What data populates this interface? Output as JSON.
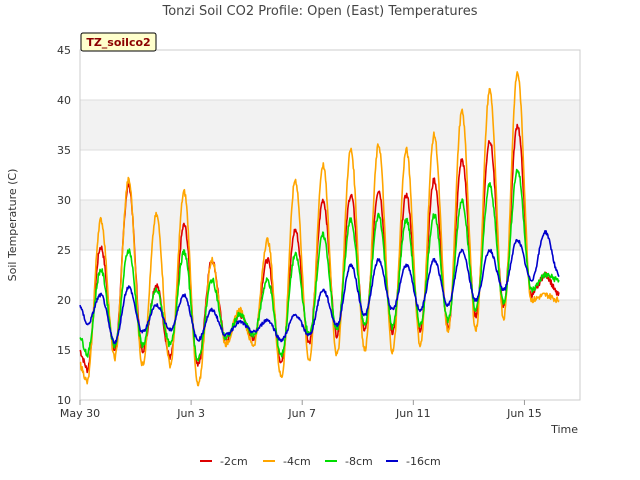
{
  "chart_data": {
    "type": "line",
    "title": "Tonzi Soil CO2 Profile: Open (East) Temperatures",
    "xlabel": "Time",
    "ylabel": "Soil Temperature (C)",
    "ylim": [
      10,
      45
    ],
    "xlim": [
      0,
      18
    ],
    "yticks": [
      10,
      15,
      20,
      25,
      30,
      35,
      40,
      45
    ],
    "xticks": [
      {
        "x": 0,
        "label": "May 30"
      },
      {
        "x": 4,
        "label": "Jun 3"
      },
      {
        "x": 8,
        "label": "Jun 7"
      },
      {
        "x": 12,
        "label": "Jun 11"
      },
      {
        "x": 16,
        "label": "Jun 15"
      }
    ],
    "grid": true,
    "legend_position": "bottom",
    "site_tag": "TZ_soilco2",
    "daily_extremes": {
      "min_day_offset": [
        0.25,
        1.25,
        2.25,
        3.25,
        4.25,
        5.25,
        6.25,
        7.25,
        8.25,
        9.25,
        10.25,
        11.25,
        12.25,
        13.25,
        14.25,
        15.25,
        16.25,
        17.25
      ],
      "max_day_offset": [
        0.75,
        1.75,
        2.75,
        3.75,
        4.75,
        5.75,
        6.75,
        7.75,
        8.75,
        9.75,
        10.75,
        11.75,
        12.75,
        13.75,
        14.75,
        15.75,
        16.75
      ]
    },
    "series": [
      {
        "name": "-2cm",
        "color": "#dd0000",
        "mins": [
          13.0,
          15.0,
          15.0,
          14.3,
          13.5,
          16.0,
          16.2,
          13.8,
          15.8,
          16.5,
          17.0,
          16.8,
          17.0,
          17.2,
          18.5,
          19.5,
          20.5,
          20.5
        ],
        "maxs": [
          25.3,
          31.5,
          21.5,
          27.5,
          24.0,
          18.5,
          24.0,
          27.0,
          30.0,
          30.5,
          31.0,
          30.5,
          32.0,
          34.0,
          36.0,
          37.5,
          22.5
        ]
      },
      {
        "name": "-4cm",
        "color": "#ffa500",
        "mins": [
          11.7,
          14.2,
          13.5,
          13.5,
          11.4,
          15.6,
          15.5,
          12.3,
          14.0,
          14.5,
          15.0,
          14.8,
          15.5,
          16.8,
          17.0,
          18.2,
          20.0,
          20.0
        ],
        "maxs": [
          28.0,
          32.0,
          28.5,
          30.8,
          24.0,
          19.0,
          26.0,
          32.0,
          33.5,
          35.0,
          35.5,
          35.0,
          36.5,
          38.8,
          41.0,
          42.7,
          20.5
        ]
      },
      {
        "name": "-8cm",
        "color": "#00dd00",
        "mins": [
          14.5,
          15.5,
          15.5,
          15.5,
          14.0,
          16.2,
          16.5,
          14.5,
          16.5,
          17.0,
          17.5,
          17.3,
          17.5,
          18.0,
          19.0,
          19.8,
          21.0,
          22.0
        ],
        "maxs": [
          23.0,
          25.0,
          21.0,
          24.8,
          22.0,
          18.5,
          22.0,
          24.5,
          26.5,
          28.0,
          28.5,
          28.0,
          28.5,
          30.0,
          31.5,
          33.0,
          22.5
        ]
      },
      {
        "name": "-16cm",
        "color": "#0000cc",
        "mins": [
          17.5,
          15.8,
          16.8,
          17.0,
          16.0,
          16.5,
          16.8,
          16.0,
          16.5,
          17.5,
          18.5,
          19.0,
          19.0,
          19.5,
          20.0,
          21.0,
          22.0,
          22.5
        ],
        "maxs": [
          20.5,
          21.3,
          19.5,
          20.5,
          19.0,
          17.8,
          18.0,
          18.5,
          21.0,
          23.5,
          24.0,
          23.5,
          24.0,
          25.0,
          25.0,
          26.0,
          26.8
        ]
      }
    ]
  }
}
